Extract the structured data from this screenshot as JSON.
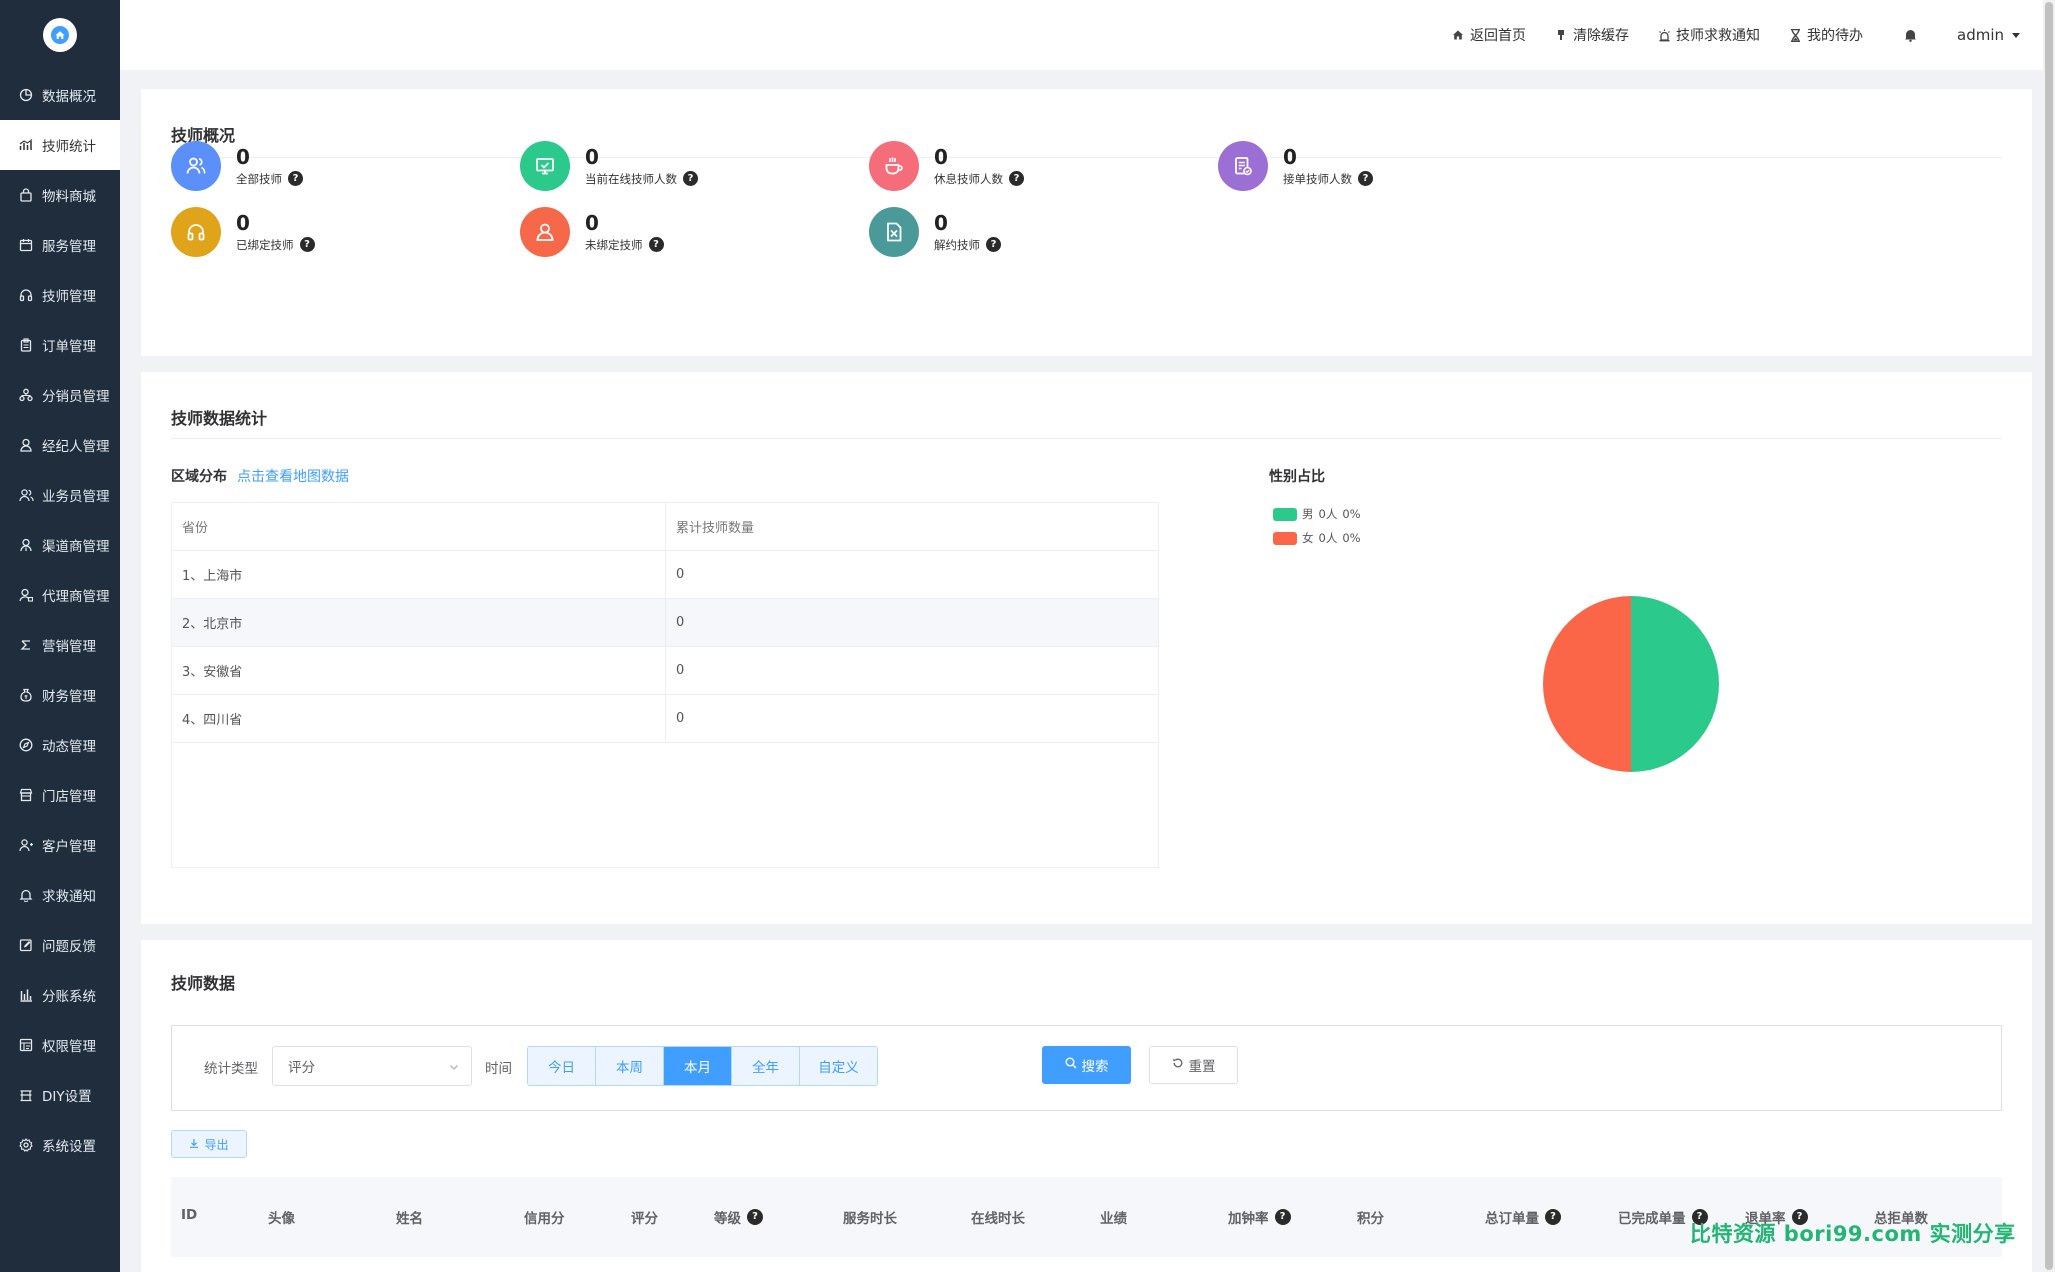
{
  "sidebar": {
    "items": [
      {
        "label": "数据概况",
        "icon": "pie-chart-icon"
      },
      {
        "label": "技师统计",
        "icon": "bar-chart-icon",
        "active": true
      },
      {
        "label": "物料商城",
        "icon": "bag-icon"
      },
      {
        "label": "服务管理",
        "icon": "calendar-icon"
      },
      {
        "label": "技师管理",
        "icon": "headset-icon"
      },
      {
        "label": "订单管理",
        "icon": "clipboard-icon"
      },
      {
        "label": "分销员管理",
        "icon": "org-icon"
      },
      {
        "label": "经纪人管理",
        "icon": "agent-icon"
      },
      {
        "label": "业务员管理",
        "icon": "users-icon"
      },
      {
        "label": "渠道商管理",
        "icon": "channel-icon"
      },
      {
        "label": "代理商管理",
        "icon": "proxy-icon"
      },
      {
        "label": "营销管理",
        "icon": "marketing-icon"
      },
      {
        "label": "财务管理",
        "icon": "money-bag-icon"
      },
      {
        "label": "动态管理",
        "icon": "compass-icon"
      },
      {
        "label": "门店管理",
        "icon": "store-icon"
      },
      {
        "label": "客户管理",
        "icon": "customers-icon"
      },
      {
        "label": "求救通知",
        "icon": "bell-icon"
      },
      {
        "label": "问题反馈",
        "icon": "edit-icon"
      },
      {
        "label": "分账系统",
        "icon": "split-icon"
      },
      {
        "label": "权限管理",
        "icon": "permission-icon"
      },
      {
        "label": "DIY设置",
        "icon": "diy-icon"
      },
      {
        "label": "系统设置",
        "icon": "gear-icon"
      }
    ]
  },
  "topbar": {
    "home": "返回首页",
    "clear_cache": "清除缓存",
    "sos_notice": "技师求救通知",
    "todo": "我的待办",
    "user": "admin"
  },
  "overview": {
    "title": "技师概况",
    "stats": [
      {
        "value": "0",
        "label": "全部技师",
        "color": "#5b8ff9",
        "icon": "users-icon"
      },
      {
        "value": "0",
        "label": "当前在线技师人数",
        "color": "#2bc98b",
        "icon": "monitor-icon"
      },
      {
        "value": "0",
        "label": "休息技师人数",
        "color": "#f56c7a",
        "icon": "coffee-icon"
      },
      {
        "value": "0",
        "label": "接单技师人数",
        "color": "#9b6fd4",
        "icon": "order-icon"
      },
      {
        "value": "0",
        "label": "已绑定技师",
        "color": "#e0a41a",
        "icon": "headset-icon"
      },
      {
        "value": "0",
        "label": "未绑定技师",
        "color": "#f5684a",
        "icon": "person-icon"
      },
      {
        "value": "0",
        "label": "解约技师",
        "color": "#4a9a9a",
        "icon": "file-x-icon"
      }
    ]
  },
  "stats_section": {
    "title": "技师数据统计",
    "region_title": "区域分布",
    "map_link": "点击查看地图数据",
    "table_headers": [
      "省份",
      "累计技师数量"
    ],
    "rows": [
      {
        "province": "1、上海市",
        "count": "0"
      },
      {
        "province": "2、北京市",
        "count": "0"
      },
      {
        "province": "3、安徽省",
        "count": "0"
      },
      {
        "province": "4、四川省",
        "count": "0"
      }
    ],
    "gender_title": "性别占比",
    "legend": [
      {
        "label": "男",
        "count": "0人",
        "pct": "0%",
        "color": "#2bc98b"
      },
      {
        "label": "女",
        "count": "0人",
        "pct": "0%",
        "color": "#fb6648"
      }
    ]
  },
  "chart_data": {
    "type": "pie",
    "title": "性别占比",
    "labels": [
      "男",
      "女"
    ],
    "values": [
      0,
      0
    ],
    "display_fractions": [
      0.5,
      0.5
    ],
    "colors": [
      "#2bc98b",
      "#fb6648"
    ]
  },
  "tech_data": {
    "title": "技师数据",
    "stat_type_label": "统计类型",
    "stat_type_value": "评分",
    "time_label": "时间",
    "time_options": [
      "今日",
      "本周",
      "本月",
      "全年",
      "自定义"
    ],
    "time_active": "本月",
    "search": "搜索",
    "reset": "重置",
    "export": "导出",
    "columns": [
      "ID",
      "头像",
      "姓名",
      "信用分",
      "评分",
      "等级",
      "服务时长",
      "在线时长",
      "业绩",
      "加钟率",
      "积分",
      "总订单量",
      "已完成单量",
      "退单率",
      "总拒单数"
    ],
    "columns_with_help": [
      "等级",
      "加钟率",
      "总订单量",
      "已完成单量",
      "退单率"
    ]
  },
  "watermark": "比特资源 bori99.com 实测分享"
}
